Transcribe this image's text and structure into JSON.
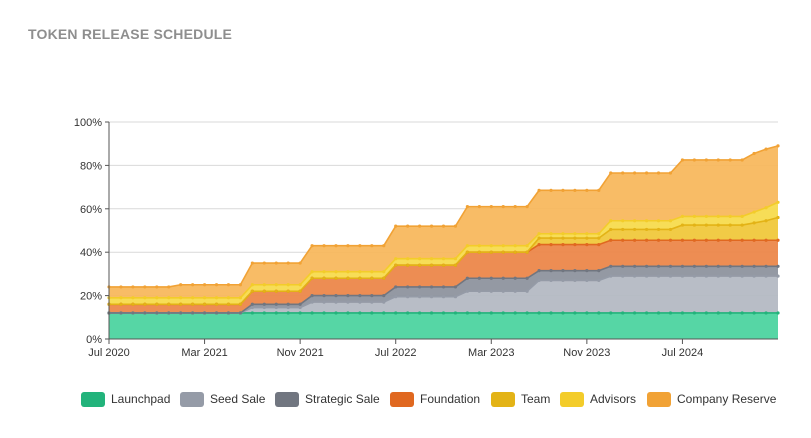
{
  "title": "TOKEN RELEASE SCHEDULE",
  "chart_data": {
    "type": "area",
    "stacked": true,
    "title": "TOKEN RELEASE SCHEDULE",
    "xlabel": "",
    "ylabel": "",
    "ylim": [
      0,
      100
    ],
    "yticks": [
      "0%",
      "20%",
      "40%",
      "60%",
      "80%",
      "100%"
    ],
    "xticks": [
      "Jul 2020",
      "Mar 2021",
      "Nov 2021",
      "Jul 2022",
      "Mar 2023",
      "Nov 2023",
      "Jul 2024"
    ],
    "x_start": "2020-07",
    "x_end": "2025-03",
    "legend_position": "bottom",
    "grid": true,
    "x": [
      "2020-07",
      "2020-08",
      "2020-09",
      "2020-10",
      "2020-11",
      "2020-12",
      "2021-01",
      "2021-02",
      "2021-03",
      "2021-04",
      "2021-05",
      "2021-06",
      "2021-07",
      "2021-08",
      "2021-09",
      "2021-10",
      "2021-11",
      "2021-12",
      "2022-01",
      "2022-02",
      "2022-03",
      "2022-04",
      "2022-05",
      "2022-06",
      "2022-07",
      "2022-08",
      "2022-09",
      "2022-10",
      "2022-11",
      "2022-12",
      "2023-01",
      "2023-02",
      "2023-03",
      "2023-04",
      "2023-05",
      "2023-06",
      "2023-07",
      "2023-08",
      "2023-09",
      "2023-10",
      "2023-11",
      "2023-12",
      "2024-01",
      "2024-02",
      "2024-03",
      "2024-04",
      "2024-05",
      "2024-06",
      "2024-07",
      "2024-08",
      "2024-09",
      "2024-10",
      "2024-11",
      "2024-12",
      "2025-01",
      "2025-02",
      "2025-03"
    ],
    "series": [
      {
        "name": "Launchpad",
        "color": "#4dd4a0",
        "line": "#22b37b",
        "values": [
          12,
          12,
          12,
          12,
          12,
          12,
          12,
          12,
          12,
          12,
          12,
          12,
          12,
          12,
          12,
          12,
          12,
          12,
          12,
          12,
          12,
          12,
          12,
          12,
          12,
          12,
          12,
          12,
          12,
          12,
          12,
          12,
          12,
          12,
          12,
          12,
          12,
          12,
          12,
          12,
          12,
          12,
          12,
          12,
          12,
          12,
          12,
          12,
          12,
          12,
          12,
          12,
          12,
          12,
          12,
          12,
          12
        ]
      },
      {
        "name": "Seed Sale",
        "color": "#b4b9c3",
        "line": "#959ba7",
        "values": [
          0,
          0,
          0,
          0,
          0,
          0,
          0,
          0,
          0,
          0,
          0,
          0,
          2.5,
          2.5,
          2.5,
          2.5,
          2.5,
          5,
          5,
          5,
          5,
          5,
          5,
          5,
          7.5,
          7.5,
          7.5,
          7.5,
          7.5,
          7.5,
          10,
          10,
          10,
          10,
          10,
          10,
          15,
          15,
          15,
          15,
          15,
          15,
          17,
          17,
          17,
          17,
          17,
          17,
          17,
          17,
          17,
          17,
          17,
          17,
          17,
          17,
          17
        ]
      },
      {
        "name": "Strategic Sale",
        "color": "#8e939e",
        "line": "#717680",
        "values": [
          0,
          0,
          0,
          0,
          0,
          0,
          0,
          0,
          0,
          0,
          0,
          0,
          1.5,
          1.5,
          1.5,
          1.5,
          1.5,
          3,
          3,
          3,
          3,
          3,
          3,
          3,
          4.5,
          4.5,
          4.5,
          4.5,
          4.5,
          4.5,
          6,
          6,
          6,
          6,
          6,
          6,
          4.5,
          4.5,
          4.5,
          4.5,
          4.5,
          4.5,
          4.5,
          4.5,
          4.5,
          4.5,
          4.5,
          4.5,
          4.5,
          4.5,
          4.5,
          4.5,
          4.5,
          4.5,
          4.5,
          4.5,
          4.5
        ]
      },
      {
        "name": "Foundation",
        "color": "#ec874a",
        "line": "#e06820",
        "values": [
          4,
          4,
          4,
          4,
          4,
          4,
          4,
          4,
          4,
          4,
          4,
          4,
          6,
          6,
          6,
          6,
          6,
          8,
          8,
          8,
          8,
          8,
          8,
          8,
          10,
          10,
          10,
          10,
          10,
          10,
          12,
          12,
          12,
          12,
          12,
          12,
          12,
          12,
          12,
          12,
          12,
          12,
          12,
          12,
          12,
          12,
          12,
          12,
          12,
          12,
          12,
          12,
          12,
          12,
          12,
          12,
          12
        ]
      },
      {
        "name": "Team",
        "color": "#f0c83c",
        "line": "#e3b316",
        "values": [
          0,
          0,
          0,
          0,
          0,
          0,
          0,
          0,
          0,
          0,
          0,
          0,
          0,
          0,
          0,
          0,
          0,
          0,
          0,
          0,
          0,
          0,
          0,
          0,
          0,
          0,
          0,
          0,
          0,
          0,
          0,
          0,
          0,
          0,
          0,
          0,
          3,
          3,
          3,
          3,
          3,
          3,
          5,
          5,
          5,
          5,
          5,
          5,
          7,
          7,
          7,
          7,
          7,
          7,
          8,
          9,
          10.5
        ]
      },
      {
        "name": "Advisors",
        "color": "#f7db4e",
        "line": "#f3cc2a",
        "values": [
          3,
          3,
          3,
          3,
          3,
          3,
          3,
          3,
          3,
          3,
          3,
          3,
          3,
          3,
          3,
          3,
          3,
          3,
          3,
          3,
          3,
          3,
          3,
          3,
          3,
          3,
          3,
          3,
          3,
          3,
          3,
          3,
          3,
          3,
          3,
          3,
          2,
          2,
          2,
          2,
          2,
          2,
          4,
          4,
          4,
          4,
          4,
          4,
          4,
          4,
          4,
          4,
          4,
          4,
          5,
          6,
          7
        ]
      },
      {
        "name": "Company Reserve",
        "color": "#f8b85e",
        "line": "#f1a235",
        "values": [
          5,
          5,
          5,
          5,
          5,
          5,
          6,
          6,
          6,
          6,
          6,
          6,
          10,
          10,
          10,
          10,
          10,
          12,
          12,
          12,
          12,
          12,
          12,
          12,
          15,
          15,
          15,
          15,
          15,
          15,
          18,
          18,
          18,
          18,
          18,
          18,
          20,
          20,
          20,
          20,
          20,
          20,
          22,
          22,
          22,
          22,
          22,
          22,
          26,
          26,
          26,
          26,
          26,
          26,
          27,
          27,
          26
        ]
      }
    ]
  }
}
